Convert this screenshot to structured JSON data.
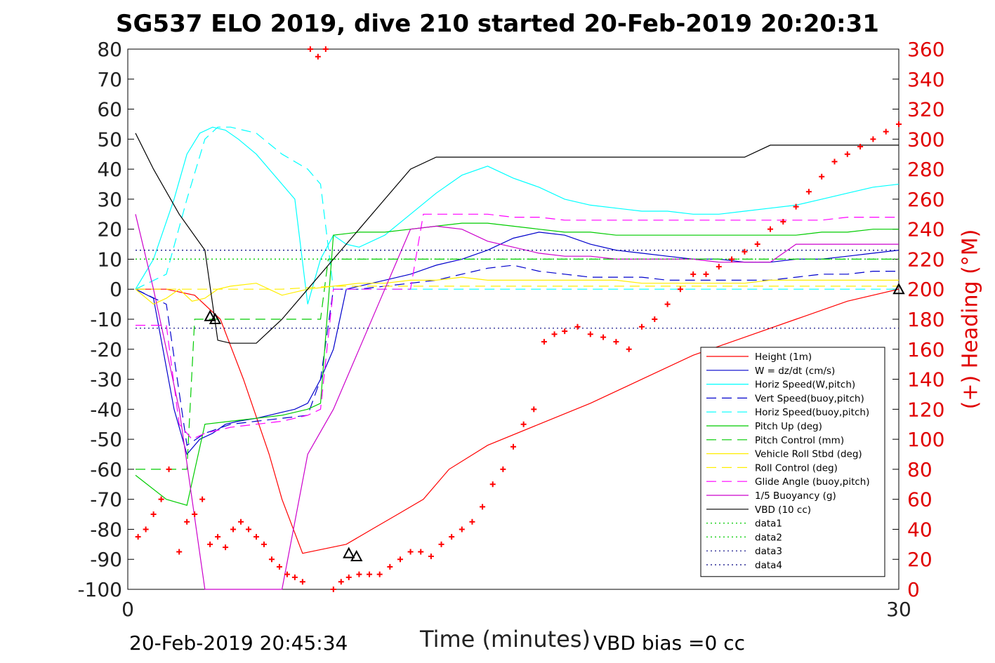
{
  "chart_data": {
    "type": "line",
    "title": "SG537 ELO 2019, dive 210 started 20-Feb-2019 20:20:31",
    "xlabel": "Time (minutes)",
    "ylabel_right": "(+) Heading (°M)",
    "xlim": [
      0,
      30
    ],
    "ylim": [
      -100,
      80
    ],
    "ylim_right": [
      0,
      360
    ],
    "x_ticks": [
      "0",
      "30"
    ],
    "y_ticks": [
      "80",
      "70",
      "60",
      "50",
      "40",
      "30",
      "20",
      "10",
      "0",
      "-10",
      "-20",
      "-30",
      "-40",
      "-50",
      "-60",
      "-70",
      "-80",
      "-90",
      "-100"
    ],
    "y_ticks_right": [
      "360",
      "340",
      "320",
      "300",
      "280",
      "260",
      "240",
      "220",
      "200",
      "180",
      "160",
      "140",
      "120",
      "100",
      "80",
      "60",
      "40",
      "20",
      "0"
    ],
    "legend_position": "bottom-right",
    "series": [
      {
        "name": "Height (1m)",
        "color": "#ff0000",
        "style": "solid",
        "x": [
          0.3,
          1.5,
          2.6,
          3.6,
          4.5,
          5.5,
          6.0,
          6.8,
          8.5,
          9.5,
          10.5,
          11.5,
          12.5,
          14,
          16,
          18,
          20,
          22,
          24,
          26,
          28,
          30
        ],
        "y": [
          0,
          0,
          -2,
          -10,
          -30,
          -55,
          -70,
          -88,
          -85,
          -80,
          -75,
          -70,
          -60,
          -52,
          -45,
          -38,
          -30,
          -22,
          -16,
          -10,
          -4,
          0
        ]
      },
      {
        "name": "W = dz/dt (cm/s)",
        "color": "#0000cc",
        "style": "solid",
        "x": [
          0.3,
          1,
          1.8,
          2.3,
          2.8,
          3.3,
          3.8,
          4.3,
          5,
          5.5,
          6,
          6.5,
          7,
          7.5,
          8,
          8.5,
          9,
          10,
          11,
          12,
          13,
          14,
          15,
          16,
          17,
          18,
          19,
          20,
          21,
          22,
          23,
          24,
          25,
          26,
          27,
          28,
          29,
          30
        ],
        "y": [
          0,
          -3,
          -40,
          -55,
          -50,
          -48,
          -45,
          -44,
          -43,
          -42,
          -41,
          -40,
          -38,
          -30,
          -20,
          0,
          1,
          3,
          5,
          8,
          10,
          13,
          17,
          19,
          18,
          15,
          13,
          12,
          11,
          10,
          10,
          9,
          9,
          10,
          10,
          11,
          12,
          13
        ]
      },
      {
        "name": "Horiz Speed(W,pitch)",
        "color": "#00ffff",
        "style": "solid",
        "x": [
          0.3,
          1,
          1.8,
          2.3,
          2.8,
          3.3,
          3.8,
          4.3,
          5,
          5.5,
          6,
          6.5,
          7,
          7.5,
          8,
          8.5,
          9,
          10,
          11,
          12,
          13,
          14,
          15,
          16,
          17,
          18,
          19,
          20,
          21,
          22,
          23,
          24,
          25,
          26,
          27,
          28,
          29,
          30
        ],
        "y": [
          0,
          10,
          30,
          45,
          52,
          54,
          53,
          50,
          45,
          40,
          35,
          30,
          -5,
          10,
          18,
          15,
          14,
          18,
          25,
          32,
          38,
          41,
          37,
          34,
          30,
          28,
          27,
          26,
          26,
          25,
          25,
          26,
          27,
          28,
          30,
          32,
          34,
          35
        ]
      },
      {
        "name": "Vert Speed(buoy,pitch)",
        "color": "#0000cc",
        "style": "dashed",
        "x": [
          0.3,
          1.5,
          2.3,
          3,
          4,
          5,
          6,
          7,
          7.5,
          8,
          9,
          10,
          11,
          12,
          13,
          14,
          15,
          16,
          17,
          18,
          19,
          20,
          21,
          22,
          23,
          24,
          25,
          26,
          27,
          28,
          29,
          30
        ],
        "y": [
          0,
          -5,
          -52,
          -48,
          -45,
          -44,
          -43,
          -42,
          -30,
          0,
          0,
          1,
          2,
          3,
          5,
          7,
          8,
          6,
          5,
          4,
          4,
          4,
          3,
          3,
          3,
          3,
          3,
          4,
          5,
          5,
          6,
          6
        ]
      },
      {
        "name": "Horiz Speed(buoy,pitch)",
        "color": "#00ffff",
        "style": "dashed",
        "x": [
          0.3,
          1.5,
          2.3,
          3,
          3.5,
          4,
          4.5,
          5,
          6,
          7,
          7.5,
          8,
          9,
          10,
          11,
          12,
          13,
          14,
          15,
          16,
          17,
          18,
          19,
          20,
          21,
          22,
          23,
          24,
          25,
          26,
          27,
          28,
          29,
          30
        ],
        "y": [
          0,
          5,
          30,
          50,
          54,
          54,
          53,
          52,
          45,
          40,
          35,
          0,
          0,
          0,
          0,
          0,
          0,
          0,
          0,
          0,
          0,
          0,
          0,
          0,
          0,
          0,
          0,
          0,
          0,
          0,
          0,
          0,
          0,
          0
        ]
      },
      {
        "name": "Pitch Up (deg)",
        "color": "#00cc00",
        "style": "solid",
        "x": [
          0.3,
          1.5,
          2.3,
          3,
          4,
          5,
          6,
          7,
          7.5,
          8,
          9,
          10,
          11,
          12,
          13,
          14,
          15,
          16,
          17,
          18,
          19,
          20,
          21,
          22,
          23,
          24,
          25,
          26,
          27,
          28,
          29,
          30
        ],
        "y": [
          -62,
          -70,
          -72,
          -45,
          -44,
          -43,
          -42,
          -40,
          -38,
          18,
          19,
          19,
          20,
          21,
          22,
          22,
          21,
          20,
          19,
          19,
          18,
          18,
          18,
          18,
          18,
          18,
          18,
          18,
          19,
          19,
          20,
          20
        ]
      },
      {
        "name": "Pitch Control (mm)",
        "color": "#00cc00",
        "style": "dashed",
        "x": [
          0.3,
          2.3,
          2.6,
          4,
          6,
          7.5,
          7.8,
          10,
          15,
          20,
          25,
          30
        ],
        "y": [
          -60,
          -60,
          -10,
          -10,
          -10,
          -10,
          10,
          10,
          10,
          10,
          10,
          10
        ]
      },
      {
        "name": "Vehicle Roll Stbd (deg)",
        "color": "#ffee00",
        "style": "solid",
        "x": [
          0.3,
          1,
          1.5,
          2,
          2.5,
          3,
          3.5,
          4,
          5,
          6,
          7,
          8,
          9,
          10,
          11,
          12,
          13,
          14,
          15,
          16,
          17,
          18,
          19,
          20,
          21,
          22,
          23,
          24,
          25,
          26,
          27,
          28,
          29,
          30
        ],
        "y": [
          0,
          -5,
          -3,
          0,
          -4,
          -3,
          0,
          1,
          2,
          -2,
          0,
          1,
          2,
          2,
          3,
          3,
          4,
          3,
          3,
          3,
          3,
          3,
          3,
          2,
          2,
          2,
          2,
          2,
          3,
          3,
          3,
          3,
          3,
          3
        ]
      },
      {
        "name": "Roll Control (deg)",
        "color": "#ffee00",
        "style": "dashed",
        "x": [
          0.3,
          2,
          4,
          6,
          8,
          10,
          15,
          20,
          25,
          30
        ],
        "y": [
          0,
          0,
          0,
          0,
          1,
          1,
          1,
          1,
          1,
          1
        ]
      },
      {
        "name": "Glide Angle (buoy,pitch)",
        "color": "#ff00ff",
        "style": "dashed",
        "x": [
          0.3,
          1,
          1.5,
          2,
          2.5,
          3,
          3.5,
          4,
          5,
          6,
          7,
          7.5,
          8,
          9,
          10,
          11,
          11.5,
          12,
          13,
          14,
          15,
          16,
          17,
          18,
          19,
          20,
          21,
          22,
          23,
          24,
          25,
          26,
          27,
          28,
          29,
          30
        ],
        "y": [
          -12,
          -12,
          -12,
          -45,
          -50,
          -48,
          -47,
          -46,
          -45,
          -44,
          -42,
          -40,
          0,
          0,
          0,
          0,
          25,
          25,
          25,
          25,
          24,
          24,
          23,
          23,
          23,
          23,
          23,
          23,
          23,
          23,
          23,
          23,
          23,
          24,
          24,
          24
        ]
      },
      {
        "name": "1/5 Buoyancy (g)",
        "color": "#cc00cc",
        "style": "solid",
        "x": [
          0.3,
          1,
          2,
          3,
          4,
          5,
          6,
          7,
          8,
          9,
          10,
          11,
          12,
          13,
          14,
          15,
          16,
          17,
          18,
          19,
          20,
          21,
          22,
          23,
          24,
          25,
          26,
          27,
          28,
          29,
          30
        ],
        "y": [
          25,
          0,
          -40,
          -100,
          -100,
          -100,
          -100,
          -55,
          -40,
          -20,
          0,
          20,
          21,
          20,
          16,
          14,
          12,
          11,
          11,
          10,
          10,
          10,
          10,
          9,
          9,
          9,
          15,
          15,
          15,
          15,
          15
        ]
      },
      {
        "name": "VBD (10 cc)",
        "color": "#000000",
        "style": "solid",
        "x": [
          0.3,
          1,
          2,
          3,
          3.5,
          4,
          5,
          6,
          7,
          8,
          9,
          10,
          11,
          12,
          13,
          14,
          15,
          16,
          17,
          18,
          19,
          20,
          21,
          22,
          23,
          24,
          25,
          26,
          27,
          28,
          29,
          30
        ],
        "y": [
          52,
          40,
          25,
          13,
          -17,
          -18,
          -18,
          -10,
          0,
          10,
          20,
          30,
          40,
          44,
          44,
          44,
          44,
          44,
          44,
          44,
          44,
          44,
          44,
          44,
          44,
          44,
          48,
          48,
          48,
          48,
          48,
          48
        ]
      },
      {
        "name": "data1",
        "color": "#00cc00",
        "style": "dotted",
        "x": [
          0.3,
          30
        ],
        "y": [
          10,
          10
        ]
      },
      {
        "name": "data2",
        "color": "#00cc00",
        "style": "dotted",
        "x": [
          0.3,
          30
        ],
        "y": [
          10,
          10
        ]
      },
      {
        "name": "data3",
        "color": "#000080",
        "style": "dotted",
        "x": [
          0.3,
          30
        ],
        "y": [
          13,
          13
        ]
      },
      {
        "name": "data4",
        "color": "#000080",
        "style": "dotted",
        "x": [
          0.3,
          30
        ],
        "y": [
          -13,
          -13
        ]
      }
    ],
    "heading_markers": {
      "color": "#ff0000",
      "x": [
        0.4,
        0.7,
        1.0,
        1.3,
        1.6,
        2.0,
        2.3,
        2.6,
        2.9,
        3.2,
        3.5,
        3.8,
        4.1,
        4.4,
        4.7,
        5.0,
        5.3,
        5.6,
        5.9,
        6.2,
        6.5,
        6.8,
        7.1,
        7.4,
        7.7,
        8.0,
        8.3,
        8.6,
        9.0,
        9.4,
        9.8,
        10.2,
        10.6,
        11.0,
        11.4,
        11.8,
        12.2,
        12.6,
        13.0,
        13.4,
        13.8,
        14.2,
        14.6,
        15.0,
        15.4,
        15.8,
        16.2,
        16.6,
        17.0,
        17.5,
        18.0,
        18.5,
        19.0,
        19.5,
        20.0,
        20.5,
        21.0,
        21.5,
        22.0,
        22.5,
        23.0,
        23.5,
        24.0,
        24.5,
        25.0,
        25.5,
        26.0,
        26.5,
        27.0,
        27.5,
        28.0,
        28.5,
        29.0,
        29.5,
        30.0
      ],
      "y": [
        35,
        40,
        50,
        60,
        80,
        25,
        45,
        50,
        60,
        30,
        35,
        28,
        40,
        45,
        40,
        35,
        30,
        20,
        15,
        10,
        8,
        5,
        360,
        355,
        360,
        0,
        5,
        8,
        10,
        10,
        10,
        15,
        20,
        25,
        25,
        22,
        30,
        35,
        40,
        45,
        55,
        70,
        80,
        95,
        110,
        120,
        165,
        170,
        172,
        175,
        170,
        168,
        165,
        160,
        175,
        180,
        190,
        200,
        210,
        210,
        215,
        220,
        225,
        230,
        240,
        245,
        255,
        265,
        275,
        285,
        290,
        295,
        300,
        305,
        310
      ]
    },
    "markers": [
      {
        "name": "triangle",
        "x": 3.2,
        "y": -9
      },
      {
        "name": "triangle",
        "x": 3.4,
        "y": -10
      },
      {
        "name": "triangle",
        "x": 8.6,
        "y": -88
      },
      {
        "name": "triangle",
        "x": 8.9,
        "y": -89
      },
      {
        "name": "triangle",
        "x": 30,
        "y": 0
      }
    ]
  },
  "timestamp": "20-Feb-2019 20:45:34",
  "vbd_bias": "VBD bias =0 cc"
}
